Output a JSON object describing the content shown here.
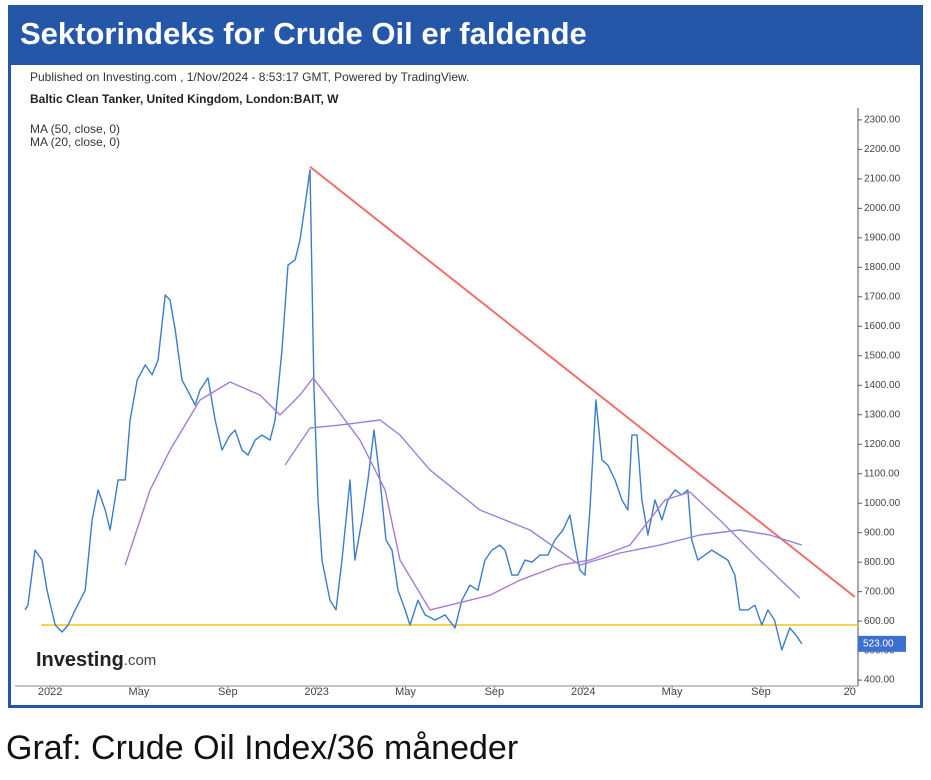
{
  "header": {
    "title": "Sektorindeks for Crude Oil er faldende"
  },
  "caption": "Graf: Crude Oil Index/36 måneder",
  "chart_data": {
    "type": "line",
    "published": "Published on Investing.com , 1/Nov/2024 - 8:53:17 GMT, Powered by TradingView.",
    "symbol": "Baltic Clean Tanker, United Kingdom, London:BAIT, W",
    "logo_name": "Investing",
    "logo_suffix": ".com",
    "xlim": [
      -1.58,
      36.37
    ],
    "xticks": [
      {
        "value": 0,
        "label": "2022"
      },
      {
        "value": 4,
        "label": "May"
      },
      {
        "value": 8,
        "label": "Sep"
      },
      {
        "value": 12,
        "label": "2023"
      },
      {
        "value": 16,
        "label": "May"
      },
      {
        "value": 20,
        "label": "Sep"
      },
      {
        "value": 24,
        "label": "2024"
      },
      {
        "value": 28,
        "label": "May"
      },
      {
        "value": 32,
        "label": "Sep"
      },
      {
        "value": 36,
        "label": "20"
      }
    ],
    "ylim": [
      380,
      2320
    ],
    "yticks": [
      {
        "value": 400,
        "label": "400.00"
      },
      {
        "value": 500,
        "label": "500.00"
      },
      {
        "value": 600,
        "label": "600.00"
      },
      {
        "value": 700,
        "label": "700.00"
      },
      {
        "value": 800,
        "label": "800.00"
      },
      {
        "value": 900,
        "label": "900.00"
      },
      {
        "value": 1000,
        "label": "1000.00"
      },
      {
        "value": 1100,
        "label": "1100.00"
      },
      {
        "value": 1200,
        "label": "1200.00"
      },
      {
        "value": 1300,
        "label": "1300.00"
      },
      {
        "value": 1400,
        "label": "1400.00"
      },
      {
        "value": 1500,
        "label": "1500.00"
      },
      {
        "value": 1600,
        "label": "1600.00"
      },
      {
        "value": 1700,
        "label": "1700.00"
      },
      {
        "value": 1800,
        "label": "1800.00"
      },
      {
        "value": 1900,
        "label": "1900.00"
      },
      {
        "value": 2000,
        "label": "2000.00"
      },
      {
        "value": 2100,
        "label": "2100.00"
      },
      {
        "value": 2200,
        "label": "2200.00"
      },
      {
        "value": 2300,
        "label": "2300.00"
      }
    ],
    "series": [
      {
        "color": "#3c7dc9",
        "x": [
          -1.13,
          -1.0,
          -0.68,
          -0.36,
          -0.14,
          0.23,
          0.54,
          0.81,
          1.13,
          1.58,
          1.89,
          2.16,
          2.48,
          2.7,
          3.06,
          3.38,
          3.6,
          3.92,
          4.28,
          4.59,
          4.86,
          5.18,
          5.4,
          5.63,
          5.94,
          6.3,
          6.53,
          6.75,
          7.11,
          7.43,
          7.74,
          8.1,
          8.33,
          8.64,
          8.91,
          9.23,
          9.54,
          9.9,
          10.13,
          10.44,
          10.71,
          11.03,
          11.25,
          11.48,
          11.7,
          11.88,
          12.06,
          12.24,
          12.6,
          12.87,
          13.14,
          13.5,
          13.72,
          14.04,
          14.31,
          14.58,
          14.85,
          15.12,
          15.39,
          15.66,
          15.98,
          16.2,
          16.56,
          16.88,
          17.33,
          17.78,
          18.23,
          18.54,
          18.9,
          19.26,
          19.58,
          19.89,
          20.25,
          20.48,
          20.79,
          21.06,
          21.38,
          21.69,
          22.05,
          22.41,
          22.72,
          23.09,
          23.4,
          23.63,
          23.85,
          24.08,
          24.3,
          24.57,
          24.84,
          25.11,
          25.43,
          25.74,
          26.01,
          26.19,
          26.42,
          26.64,
          26.91,
          27.23,
          27.54,
          27.81,
          28.13,
          28.44,
          28.71,
          28.89,
          29.16,
          29.48,
          29.79,
          30.15,
          30.51,
          30.83,
          31.05,
          31.41,
          31.73,
          32.04,
          32.31,
          32.61,
          32.94,
          33.3,
          33.57,
          33.84
        ],
        "values": [
          638,
          654,
          841,
          807,
          705,
          587,
          563,
          587,
          638,
          705,
          943,
          1045,
          977,
          909,
          1079,
          1079,
          1282,
          1418,
          1469,
          1435,
          1486,
          1706,
          1689,
          1588,
          1418,
          1367,
          1333,
          1384,
          1425,
          1282,
          1180,
          1231,
          1248,
          1180,
          1163,
          1214,
          1231,
          1214,
          1282,
          1520,
          1808,
          1825,
          1893,
          2012,
          2131,
          1384,
          1011,
          807,
          671,
          638,
          807,
          1079,
          807,
          943,
          1079,
          1248,
          1079,
          875,
          841,
          705,
          638,
          587,
          671,
          621,
          604,
          621,
          577,
          671,
          722,
          705,
          807,
          841,
          858,
          841,
          756,
          756,
          807,
          800,
          824,
          824,
          875,
          909,
          960,
          858,
          773,
          756,
          977,
          1350,
          1147,
          1129,
          1079,
          1011,
          977,
          1231,
          1231,
          1011,
          892,
          1011,
          943,
          1011,
          1045,
          1028,
          1045,
          875,
          807,
          824,
          841,
          824,
          807,
          756,
          638,
          638,
          654,
          587,
          638,
          604,
          502,
          577,
          553,
          523
        ]
      },
      {
        "name": "MA (50, close, 0)",
        "color": "#8f86e0",
        "x": [
          10.58,
          11.7,
          13.05,
          14.85,
          15.75,
          17.1,
          19.35,
          21.6,
          23.85,
          25.65,
          27.45,
          29.25,
          31.05,
          32.4,
          33.84
        ],
        "values": [
          1130,
          1255,
          1265,
          1282,
          1231,
          1113,
          977,
          909,
          790,
          831,
          858,
          892,
          909,
          892,
          858
        ]
      },
      {
        "name": "MA (20, close, 0)",
        "color": "#a77ad6",
        "x": [
          3.38,
          4.5,
          5.4,
          6.75,
          8.1,
          9.45,
          10.35,
          11.25,
          11.84,
          12.6,
          13.95,
          15.08,
          15.75,
          17.1,
          18.9,
          19.8,
          21.15,
          22.95,
          24.3,
          26.1,
          27.68,
          28.8,
          30.15,
          31.95,
          33.75
        ],
        "values": [
          790,
          1045,
          1180,
          1350,
          1411,
          1367,
          1299,
          1367,
          1425,
          1350,
          1214,
          1045,
          807,
          638,
          671,
          688,
          739,
          790,
          807,
          858,
          1011,
          1038,
          943,
          807,
          678
        ]
      }
    ],
    "trendline": {
      "color": "#ee6f6a",
      "x": [
        11.7,
        36.23
      ],
      "values": [
        2141,
        682
      ]
    },
    "support_level": {
      "color": "#f2c51d",
      "value": 587
    },
    "last_label": {
      "value": 523,
      "label": "523.00",
      "color": "#3d6fd0"
    }
  }
}
